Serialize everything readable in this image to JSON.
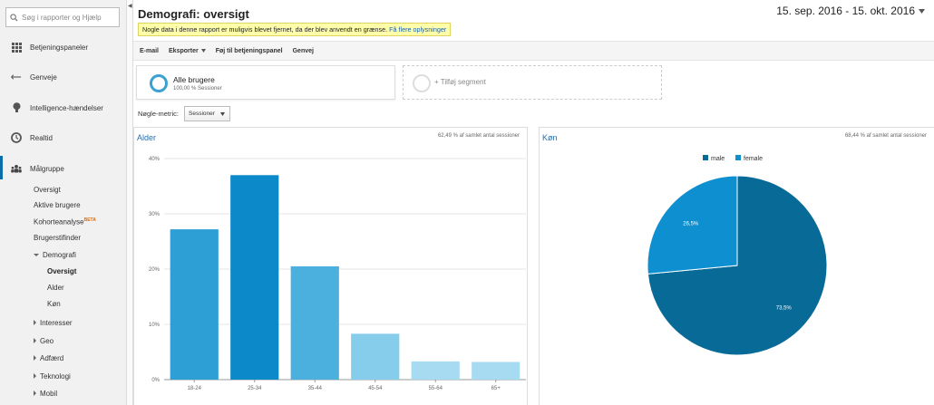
{
  "sidebar": {
    "search_placeholder": "Søg i rapporter og Hjælp",
    "nav": [
      {
        "label": "Betjeningspaneler",
        "icon": "grid-icon"
      },
      {
        "label": "Genveje",
        "icon": "arrows-icon"
      },
      {
        "label": "Intelligence-hændelser",
        "icon": "bulb-icon"
      },
      {
        "label": "Realtid",
        "icon": "clock-icon"
      },
      {
        "label": "Målgruppe",
        "icon": "people-icon"
      }
    ],
    "sub": {
      "oversigt": "Oversigt",
      "aktive": "Aktive brugere",
      "kohorte": "Kohorteanalyse",
      "beta": "BETA",
      "brugerstifinder": "Brugerstifinder",
      "demografi": "Demografi",
      "demografi_oversigt": "Oversigt",
      "alder": "Alder",
      "koen": "Køn",
      "interesser": "Interesser",
      "geo": "Geo",
      "adfaerd": "Adfærd",
      "teknologi": "Teknologi",
      "mobil": "Mobil"
    }
  },
  "header": {
    "title": "Demografi: oversigt",
    "date_range": "15. sep. 2016 - 15. okt. 2016",
    "notice": "Nogle data i denne rapport er muligvis blevet fjernet, da der blev anvendt en grænse.",
    "notice_link": "Få flere oplysninger"
  },
  "toolbar": {
    "email": "E-mail",
    "export": "Eksporter",
    "add_dashboard": "Føj til betjeningspanel",
    "shortcut": "Genvej"
  },
  "segments": {
    "active_name": "Alle brugere",
    "active_sub": "100,00 % Sessioner",
    "add_label": "+ Tilføj segment"
  },
  "metric": {
    "label": "Nøgle-metric:",
    "selected": "Sessioner"
  },
  "age_panel": {
    "title": "Alder",
    "note": "62,49 % af samlet antal sessioner"
  },
  "gender_panel": {
    "title": "Køn",
    "note": "68,44 % af samlet antal sessioner"
  },
  "chart_data": [
    {
      "type": "bar",
      "title": "Alder",
      "categories": [
        "18-24",
        "25-34",
        "35-44",
        "45-54",
        "55-64",
        "65+"
      ],
      "values": [
        27.2,
        37,
        20.5,
        8.3,
        3.3,
        3.2
      ],
      "colors": [
        "#2e9fd4",
        "#0b89c9",
        "#4cb0de",
        "#86cdeb",
        "#a7dbf1",
        "#a7dbf1"
      ],
      "yticks": [
        "0%",
        "10%",
        "20%",
        "30%",
        "40%"
      ],
      "ylim": [
        0,
        40
      ],
      "grid": true
    },
    {
      "type": "pie",
      "title": "Køn",
      "categories": [
        "male",
        "female"
      ],
      "values": [
        73.5,
        26.5
      ],
      "labels": [
        "73,5%",
        "26,5%"
      ],
      "colors": [
        "#086a96",
        "#0e8fd0"
      ],
      "legend": "top"
    }
  ]
}
